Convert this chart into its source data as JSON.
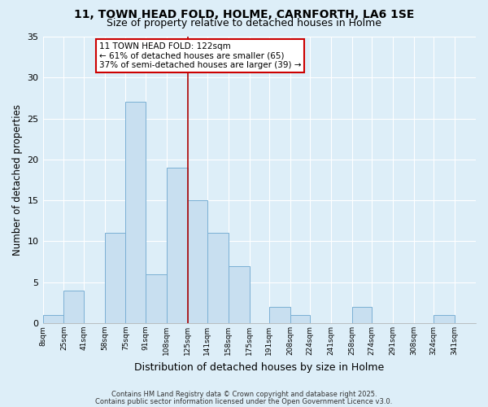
{
  "title": "11, TOWN HEAD FOLD, HOLME, CARNFORTH, LA6 1SE",
  "subtitle": "Size of property relative to detached houses in Holme",
  "xlabel": "Distribution of detached houses by size in Holme",
  "ylabel": "Number of detached properties",
  "background_color": "#ddeef8",
  "bar_color": "#c8dff0",
  "bar_edge_color": "#7ab0d4",
  "grid_color": "#ffffff",
  "vline_x": 125,
  "vline_color": "#aa0000",
  "bins": [
    8,
    25,
    41,
    58,
    75,
    91,
    108,
    125,
    141,
    158,
    175,
    191,
    208,
    224,
    241,
    258,
    274,
    291,
    308,
    324,
    341,
    358
  ],
  "bin_labels": [
    "8sqm",
    "25sqm",
    "41sqm",
    "58sqm",
    "75sqm",
    "91sqm",
    "108sqm",
    "125sqm",
    "141sqm",
    "158sqm",
    "175sqm",
    "191sqm",
    "208sqm",
    "224sqm",
    "241sqm",
    "258sqm",
    "274sqm",
    "291sqm",
    "308sqm",
    "324sqm",
    "341sqm"
  ],
  "counts": [
    1,
    4,
    0,
    11,
    27,
    6,
    19,
    15,
    11,
    7,
    0,
    2,
    1,
    0,
    0,
    2,
    0,
    0,
    0,
    1,
    0
  ],
  "ylim": [
    0,
    35
  ],
  "yticks": [
    0,
    5,
    10,
    15,
    20,
    25,
    30,
    35
  ],
  "annotation_lines": [
    "11 TOWN HEAD FOLD: 122sqm",
    "← 61% of detached houses are smaller (65)",
    "37% of semi-detached houses are larger (39) →"
  ],
  "footnote1": "Contains HM Land Registry data © Crown copyright and database right 2025.",
  "footnote2": "Contains public sector information licensed under the Open Government Licence v3.0."
}
